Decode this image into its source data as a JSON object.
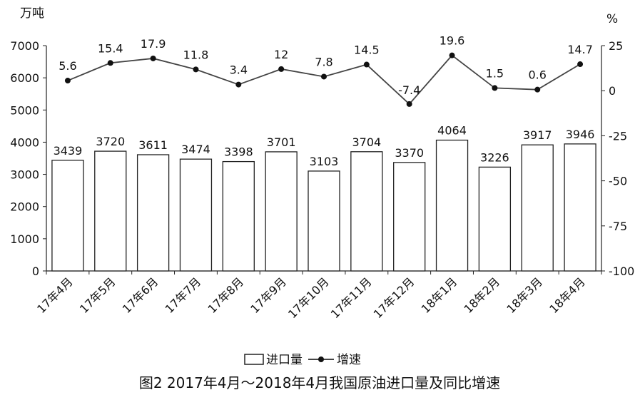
{
  "chart_data": {
    "type": "bar+line",
    "title": "图2 2017年4月～2018年4月我国原油进口量及同比增速",
    "categories": [
      "17年4月",
      "17年5月",
      "17年6月",
      "17年7月",
      "17年8月",
      "17年9月",
      "17年10月",
      "17年11月",
      "17年12月",
      "18年1月",
      "18年2月",
      "18年3月",
      "18年4月"
    ],
    "series": [
      {
        "name": "进口量",
        "type": "bar",
        "axis": "left",
        "values": [
          3439,
          3720,
          3611,
          3474,
          3398,
          3701,
          3103,
          3704,
          3370,
          4064,
          3226,
          3917,
          3946
        ]
      },
      {
        "name": "增速",
        "type": "line",
        "axis": "right",
        "values": [
          5.6,
          15.4,
          17.9,
          11.8,
          3.4,
          12,
          7.8,
          14.5,
          -7.4,
          19.6,
          1.5,
          0.6,
          14.7
        ]
      }
    ],
    "y_left": {
      "unit": "万吨",
      "ylim": [
        0,
        7000
      ],
      "ticks": [
        0,
        1000,
        2000,
        3000,
        4000,
        5000,
        6000,
        7000
      ]
    },
    "y_right": {
      "unit": "%",
      "ylim": [
        -100,
        25
      ],
      "ticks": [
        25,
        0,
        -25,
        -50,
        -75,
        -100
      ]
    },
    "legend": {
      "placement": "bottom",
      "items": [
        "进口量",
        "增速"
      ]
    },
    "grid": false
  },
  "colors": {
    "bar_fill": "#ffffff",
    "bar_stroke": "#222222",
    "line": "#444444",
    "marker": "#111111",
    "axis": "#222222"
  }
}
